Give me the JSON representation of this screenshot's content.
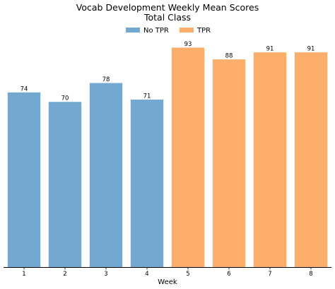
{
  "chart_data": {
    "type": "bar",
    "title": "Vocab Development Weekly Mean Scores",
    "subtitle": "Total Class",
    "xlabel": "Week",
    "ylabel": "",
    "categories": [
      "1",
      "2",
      "3",
      "4",
      "5",
      "6",
      "7",
      "8"
    ],
    "values": [
      74,
      70,
      78,
      71,
      93,
      88,
      91,
      91
    ],
    "value_labels": [
      "74",
      "70",
      "78",
      "71",
      "93",
      "88",
      "91",
      "91"
    ],
    "bar_groups": [
      "No TPR",
      "No TPR",
      "No TPR",
      "No TPR",
      "TPR",
      "TPR",
      "TPR",
      "TPR"
    ],
    "legend": [
      {
        "name": "No TPR",
        "color": "#73a9d0"
      },
      {
        "name": "TPR",
        "color": "#fdae6b"
      }
    ],
    "legend_position": "top-center",
    "ylim": [
      0,
      100
    ],
    "grid": false,
    "y_axis_visible": false
  }
}
